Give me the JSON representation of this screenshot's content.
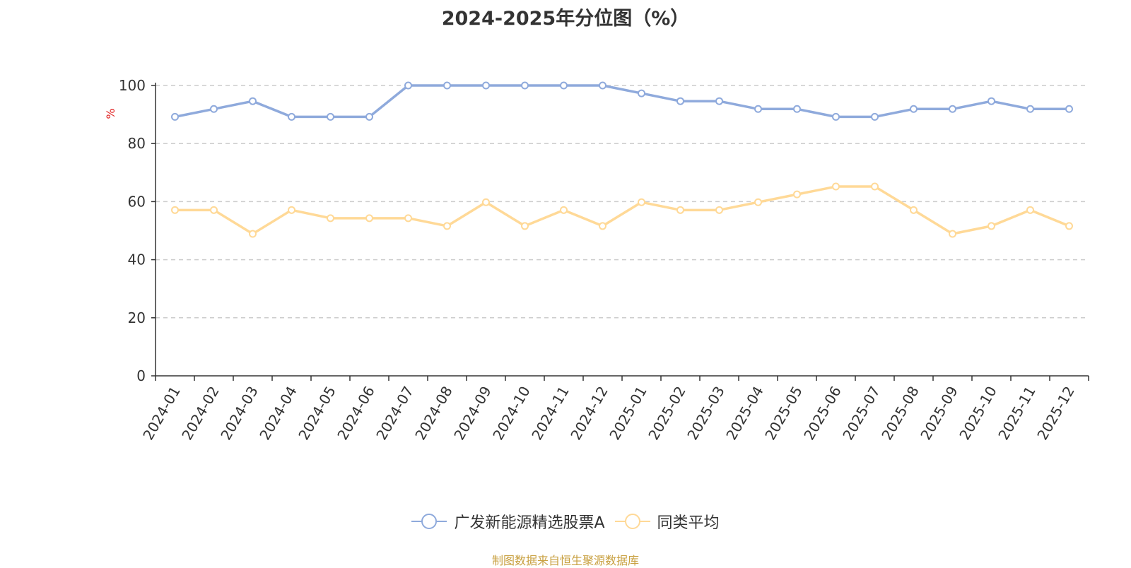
{
  "title": "2024-2025年分位图（%）",
  "source": "制图数据来自恒生聚源数据库",
  "colors": {
    "series1": "#8faadc",
    "series2": "#ffd997",
    "grid": "#cccccc",
    "axis": "#333333",
    "ylabel": "#e02020"
  },
  "chart_data": {
    "type": "line",
    "title": "2024-2025年分位图（%）",
    "xlabel": "",
    "ylabel": "%",
    "ylim": [
      0,
      100
    ],
    "yticks": [
      0,
      20,
      40,
      60,
      80,
      100
    ],
    "grid": true,
    "legend_position": "bottom",
    "categories": [
      "2024-01",
      "2024-02",
      "2024-03",
      "2024-04",
      "2024-05",
      "2024-06",
      "2024-07",
      "2024-08",
      "2024-09",
      "2024-10",
      "2024-11",
      "2024-12",
      "2025-01",
      "2025-02",
      "2025-03",
      "2025-04",
      "2025-05",
      "2025-06",
      "2025-07",
      "2025-08",
      "2025-09",
      "2025-10",
      "2025-11",
      "2025-12"
    ],
    "series": [
      {
        "name": "广发新能源精选股票A",
        "values": [
          89.2,
          91.9,
          94.6,
          89.2,
          89.2,
          89.2,
          100,
          100,
          100,
          100,
          100,
          100,
          97.3,
          94.6,
          94.6,
          91.9,
          91.9,
          89.2,
          89.2,
          91.9,
          91.9,
          94.6,
          91.9,
          91.9
        ]
      },
      {
        "name": "同类平均",
        "values": [
          57.1,
          57.1,
          48.9,
          57.1,
          54.3,
          54.3,
          54.3,
          51.6,
          59.8,
          51.6,
          57.1,
          51.6,
          59.8,
          57.1,
          57.1,
          59.8,
          62.5,
          65.2,
          65.2,
          57.1,
          48.9,
          51.6,
          57.1,
          51.6
        ]
      }
    ]
  }
}
